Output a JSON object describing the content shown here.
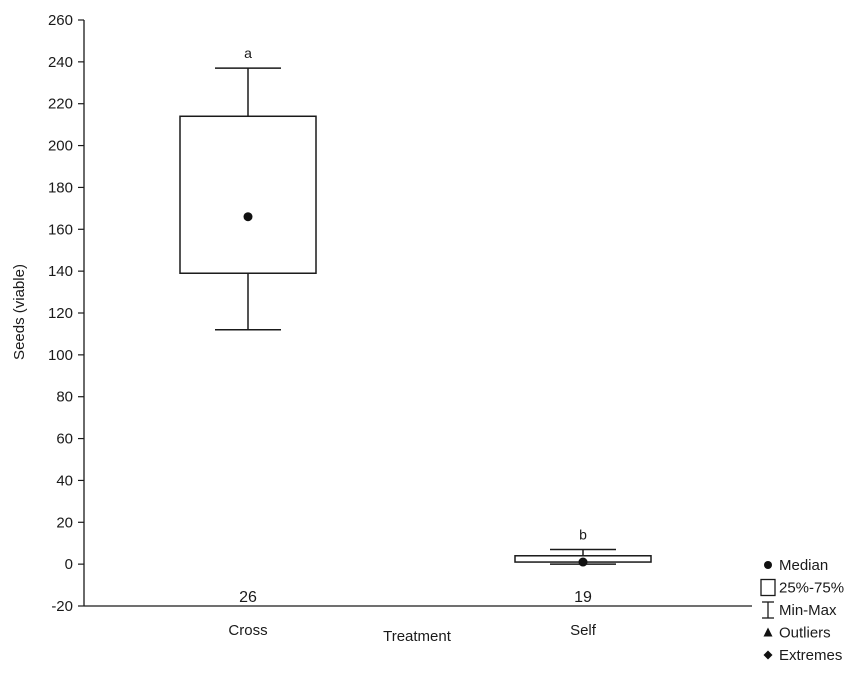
{
  "chart_data": {
    "type": "box",
    "xlabel": "Treatment",
    "ylabel": "Seeds (viable)",
    "ylim": [
      -20,
      260
    ],
    "yticks": [
      -20,
      0,
      20,
      40,
      60,
      80,
      100,
      120,
      140,
      160,
      180,
      200,
      220,
      240,
      260
    ],
    "grid": false,
    "legend_position": "bottom-right",
    "categories": [
      "Cross",
      "Self"
    ],
    "boxes": [
      {
        "category": "Cross",
        "median": 166,
        "q1": 139,
        "q3": 214,
        "min": 112,
        "max": 237,
        "n": "26",
        "letter": "a"
      },
      {
        "category": "Self",
        "median": 1,
        "q1": 1,
        "q3": 4,
        "min": 0,
        "max": 7,
        "n": "19",
        "letter": "b"
      }
    ],
    "legend": [
      {
        "symbol": "circle",
        "label": "Median"
      },
      {
        "symbol": "box",
        "label": "25%-75%"
      },
      {
        "symbol": "whisker",
        "label": "Min-Max"
      },
      {
        "symbol": "triangle",
        "label": "Outliers"
      },
      {
        "symbol": "diamond",
        "label": "Extremes"
      }
    ]
  }
}
